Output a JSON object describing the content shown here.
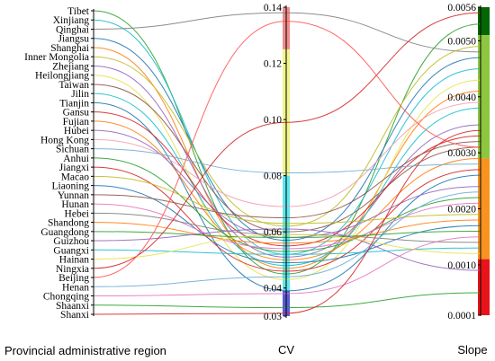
{
  "chart_data": {
    "type": "parallel-coordinates",
    "axes": [
      {
        "key": "region",
        "label": "Provincial administrative region"
      },
      {
        "key": "cv",
        "label": "CV",
        "ticks": [
          "0.14",
          "0.12",
          "0.10",
          "0.08",
          "0.06",
          "0.04",
          "0.03"
        ],
        "range": [
          0.03,
          0.14
        ]
      },
      {
        "key": "slope",
        "label": "Slope",
        "ticks": [
          "0.0056",
          "0.0050",
          "0.0040",
          "0.0030",
          "0.0020",
          "0.0010",
          "0.0001"
        ],
        "range": [
          0.0001,
          0.0056
        ]
      }
    ],
    "regions": [
      "Tibet",
      "Xinjiang",
      "Qinghai",
      "Jiangsu",
      "Shanghai",
      "Inner Mongolia",
      "Zhejiang",
      "Heilongjiang",
      "Taiwan",
      "Jilin",
      "Tianjin",
      "Gansu",
      "Fujian",
      "Hubei",
      "Hong Kong",
      "Sichuan",
      "Anhui",
      "Jiangxi",
      "Macao",
      "Liaoning",
      "Yunnan",
      "Hunan",
      "Hebei",
      "Shandong",
      "Guangdong",
      "Guizhou",
      "Guangxi",
      "Hainan",
      "Ningxia",
      "Beijing",
      "Henan",
      "Chongqing",
      "Shaanxi",
      "Shanxi"
    ],
    "cv_bands": [
      {
        "from": 0.125,
        "to": 0.14,
        "color": "#f28b8b"
      },
      {
        "from": 0.08,
        "to": 0.125,
        "color": "#f0f58a"
      },
      {
        "from": 0.039,
        "to": 0.08,
        "color": "#5ce8ee"
      },
      {
        "from": 0.03,
        "to": 0.039,
        "color": "#5a5ad8"
      }
    ],
    "slope_bands": [
      {
        "from": 0.0051,
        "to": 0.0056,
        "color": "#056605"
      },
      {
        "from": 0.0029,
        "to": 0.0051,
        "color": "#8dc63f"
      },
      {
        "from": 0.0011,
        "to": 0.0029,
        "color": "#f7931e"
      },
      {
        "from": 0.0001,
        "to": 0.0011,
        "color": "#e8141b"
      }
    ],
    "lines": [
      {
        "region": "Tibet",
        "cv": 0.045,
        "slope": 0.0053,
        "color": "#2ca02c"
      },
      {
        "region": "Xinjiang",
        "cv": 0.052,
        "slope": 0.0045,
        "color": "#17becf"
      },
      {
        "region": "Qinghai",
        "cv": 0.138,
        "slope": 0.0048,
        "color": "#7f7f7f"
      },
      {
        "region": "Jiangsu",
        "cv": 0.057,
        "slope": 0.0047,
        "color": "#1f77b4"
      },
      {
        "region": "Shanghai",
        "cv": 0.047,
        "slope": 0.0041,
        "color": "#ff7f0e"
      },
      {
        "region": "Inner Mongolia",
        "cv": 0.062,
        "slope": 0.0049,
        "color": "#bcbd22"
      },
      {
        "region": "Zhejiang",
        "cv": 0.051,
        "slope": 0.0035,
        "color": "#9467bd"
      },
      {
        "region": "Heilongjiang",
        "cv": 0.043,
        "slope": 0.0043,
        "color": "#e8e24a"
      },
      {
        "region": "Taiwan",
        "cv": 0.06,
        "slope": 0.0031,
        "color": "#8c564b"
      },
      {
        "region": "Jilin",
        "cv": 0.048,
        "slope": 0.0038,
        "color": "#17becf"
      },
      {
        "region": "Tianjin",
        "cv": 0.039,
        "slope": 0.0026,
        "color": "#1f77b4"
      },
      {
        "region": "Gansu",
        "cv": 0.055,
        "slope": 0.0033,
        "color": "#d62728"
      },
      {
        "region": "Fujian",
        "cv": 0.05,
        "slope": 0.0029,
        "color": "#ff7f0e"
      },
      {
        "region": "Hubei",
        "cv": 0.058,
        "slope": 0.0024,
        "color": "#9467bd"
      },
      {
        "region": "Hong Kong",
        "cv": 0.069,
        "slope": 0.0039,
        "color": "#f4a0b0"
      },
      {
        "region": "Sichuan",
        "cv": 0.081,
        "slope": 0.0028,
        "color": "#6baed6"
      },
      {
        "region": "Anhui",
        "cv": 0.053,
        "slope": 0.0022,
        "color": "#2ca02c"
      },
      {
        "region": "Jiangxi",
        "cv": 0.046,
        "slope": 0.0027,
        "color": "#d62728"
      },
      {
        "region": "Macao",
        "cv": 0.063,
        "slope": 0.0019,
        "color": "#bcbd22"
      },
      {
        "region": "Liaoning",
        "cv": 0.049,
        "slope": 0.0017,
        "color": "#1f77b4"
      },
      {
        "region": "Yunnan",
        "cv": 0.065,
        "slope": 0.0032,
        "color": "#8c564b"
      },
      {
        "region": "Hunan",
        "cv": 0.054,
        "slope": 0.0021,
        "color": "#e377c2"
      },
      {
        "region": "Hebei",
        "cv": 0.059,
        "slope": 0.0014,
        "color": "#7f7f7f"
      },
      {
        "region": "Shandong",
        "cv": 0.056,
        "slope": 0.0018,
        "color": "#ff7f0e"
      },
      {
        "region": "Guangdong",
        "cv": 0.058,
        "slope": 0.0016,
        "color": "#2ca02c"
      },
      {
        "region": "Guizhou",
        "cv": 0.061,
        "slope": 0.0009,
        "color": "#9467bd"
      },
      {
        "region": "Guangxi",
        "cv": 0.052,
        "slope": 0.0013,
        "color": "#17becf"
      },
      {
        "region": "Hainan",
        "cv": 0.059,
        "slope": 0.0012,
        "color": "#e8e24a"
      },
      {
        "region": "Ningxia",
        "cv": 0.099,
        "slope": 0.0055,
        "color": "#d62728"
      },
      {
        "region": "Beijing",
        "cv": 0.135,
        "slope": 0.0031,
        "color": "#ff5555"
      },
      {
        "region": "Henan",
        "cv": 0.044,
        "slope": 0.0023,
        "color": "#6baed6"
      },
      {
        "region": "Chongqing",
        "cv": 0.038,
        "slope": 0.0015,
        "color": "#e377c2"
      },
      {
        "region": "Shaanxi",
        "cv": 0.033,
        "slope": 0.0005,
        "color": "#2ca02c"
      },
      {
        "region": "Shanxi",
        "cv": 0.031,
        "slope": 0.0034,
        "color": "#d62728"
      }
    ]
  }
}
